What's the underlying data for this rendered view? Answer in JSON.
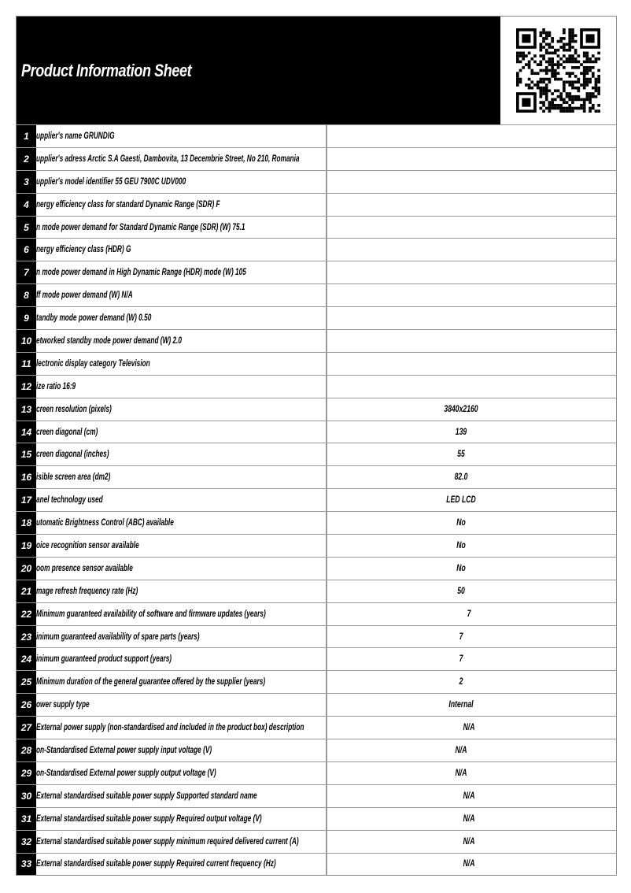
{
  "header": {
    "title": "Product Information Sheet",
    "qr_icon": "qr-code"
  },
  "rows": [
    {
      "n": "1",
      "label": "upplier's name  GRUNDIG",
      "value": ""
    },
    {
      "n": "2",
      "label": "upplier's adress Arctic S.A  Gaesti, Dambovita, 13 Decembrie Street, No 210, Romania",
      "value": ""
    },
    {
      "n": "3",
      "label": "upplier's model identifier 55 GEU 7900C UDV000",
      "value": ""
    },
    {
      "n": "4",
      "label": "nergy efficiency class for standard Dynamic Range (SDR) F",
      "value": ""
    },
    {
      "n": "5",
      "label": "n mode power demand for Standard Dynamic Range (SDR) (W) 75.1",
      "value": ""
    },
    {
      "n": "6",
      "label": "nergy efficiency class (HDR) G",
      "value": ""
    },
    {
      "n": "7",
      "label": "n mode power demand in High Dynamic Range (HDR) mode  (W) 105",
      "value": ""
    },
    {
      "n": "8",
      "label": "ff mode power demand (W) N/A",
      "value": ""
    },
    {
      "n": "9",
      "label": "tandby mode power demand  (W) 0.50",
      "value": ""
    },
    {
      "n": "10",
      "label": "etworked standby mode power demand (W) 2.0",
      "value": ""
    },
    {
      "n": "11",
      "label": "lectronic display category Television",
      "value": ""
    },
    {
      "n": "12",
      "label": "ize ratio 16:9",
      "value": ""
    },
    {
      "n": "13",
      "label": "creen resolution (pixels)",
      "value": "3840x2160"
    },
    {
      "n": "14",
      "label": "creen diagonal (cm)",
      "value": "139"
    },
    {
      "n": "15",
      "label": "creen diagonal (inches)",
      "value": "55"
    },
    {
      "n": "16",
      "label": "isible screen area (dm2)",
      "value": "82.0"
    },
    {
      "n": "17",
      "label": "anel technology used",
      "value": "LED LCD"
    },
    {
      "n": "18",
      "label": "utomatic Brightness Control (ABC) available",
      "value": "No"
    },
    {
      "n": "19",
      "label": "oice recognition sensor available",
      "value": "No"
    },
    {
      "n": "20",
      "label": "oom presence sensor available",
      "value": "No"
    },
    {
      "n": "21",
      "label": "mage refresh frequency rate (Hz)",
      "value": "50"
    },
    {
      "n": "22",
      "label": "  Minimum guaranteed availability of software and firmware updates (years)",
      "value": "7"
    },
    {
      "n": "23",
      "label": "inimum guaranteed availability of spare parts (years)",
      "value": "7"
    },
    {
      "n": "24",
      "label": "inimum guaranteed product support (years)",
      "value": "7"
    },
    {
      "n": "25",
      "label": "  Minimum duration of the general guarantee offered by the supplier (years)",
      "value": "2"
    },
    {
      "n": "26",
      "label": "ower supply type",
      "value": "Internal"
    },
    {
      "n": "27",
      "label": "  External power supply (non-standardised and included in the product box) description",
      "value": "N/A"
    },
    {
      "n": "28",
      "label": "on-Standardised External power supply input voltage (V)",
      "value": "N/A"
    },
    {
      "n": "29",
      "label": "on-Standardised External power supply output voltage (V)",
      "value": "N/A"
    },
    {
      "n": "30",
      "label": "  External standardised suitable power supply Supported standard name",
      "value": "N/A"
    },
    {
      "n": "31",
      "label": "  External standardised suitable power supply Required output voltage (V)",
      "value": "N/A"
    },
    {
      "n": "32",
      "label": "  External standardised suitable  power supply minimum required delivered current  (A)",
      "value": "N/A"
    },
    {
      "n": "33",
      "label": "  External standardised suitable power supply Required current frequency (Hz)",
      "value": "N/A"
    }
  ]
}
